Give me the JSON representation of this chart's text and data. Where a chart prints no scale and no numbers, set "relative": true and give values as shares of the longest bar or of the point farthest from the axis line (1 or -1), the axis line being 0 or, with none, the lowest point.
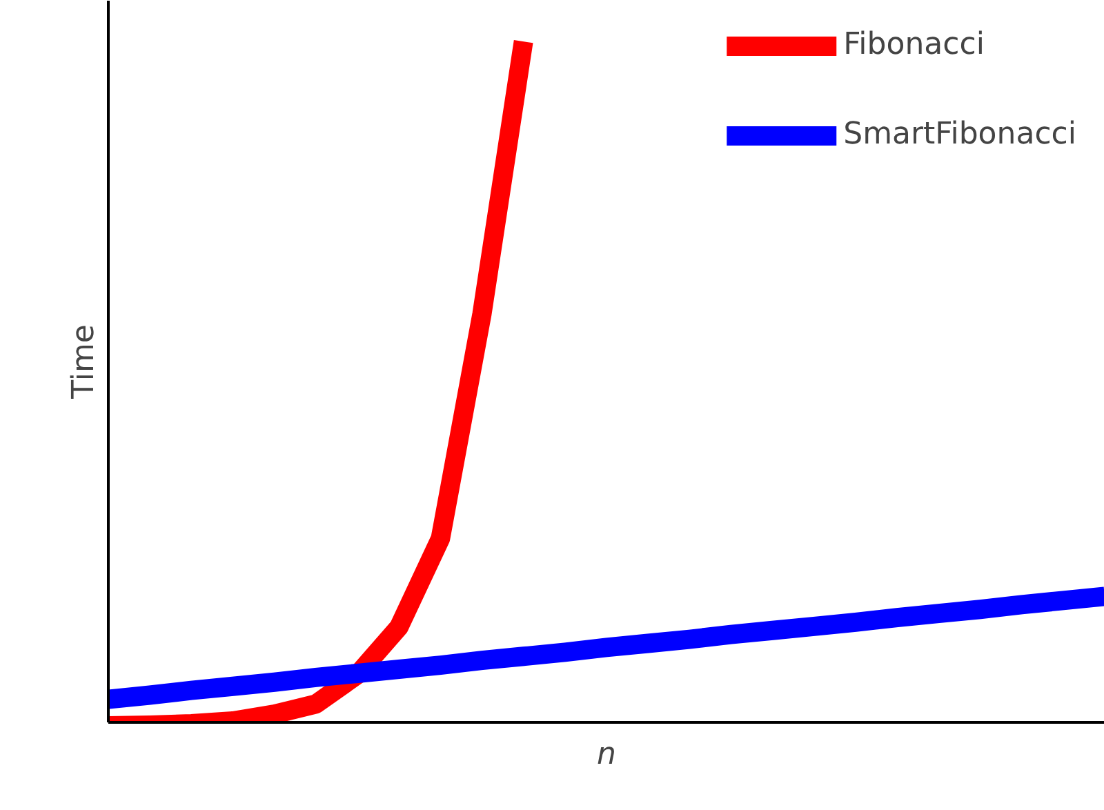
{
  "chart_data": {
    "type": "line",
    "relative": true,
    "xlabel": "n",
    "ylabel": "Time",
    "legend": "top right",
    "grid": false,
    "marker": "none",
    "line_style": "solid",
    "categories": [
      null,
      null,
      null,
      null,
      null,
      null,
      null,
      null,
      null,
      null,
      null,
      null,
      null,
      null,
      null,
      null,
      null,
      null,
      null,
      null,
      null,
      null,
      null,
      null,
      null
    ],
    "series": [
      {
        "name": "Fibonacci",
        "color": "#ff0000",
        "values": [
          -0.005,
          -0.004,
          -0.002,
          0.002,
          0.012,
          0.027,
          0.07,
          0.14,
          0.27,
          0.6,
          1.0,
          null,
          null,
          null,
          null,
          null,
          null,
          null,
          null,
          null,
          null,
          null,
          null,
          null,
          null
        ]
      },
      {
        "name": "SmartFibonacci",
        "color": "#0000ff",
        "values": [
          0.034,
          0.04,
          0.047,
          0.053,
          0.059,
          0.066,
          0.072,
          0.078,
          0.084,
          0.091,
          0.097,
          0.103,
          0.11,
          0.116,
          0.122,
          0.129,
          0.135,
          0.141,
          0.147,
          0.154,
          0.16,
          0.166,
          0.173,
          0.179,
          0.185
        ]
      }
    ]
  }
}
